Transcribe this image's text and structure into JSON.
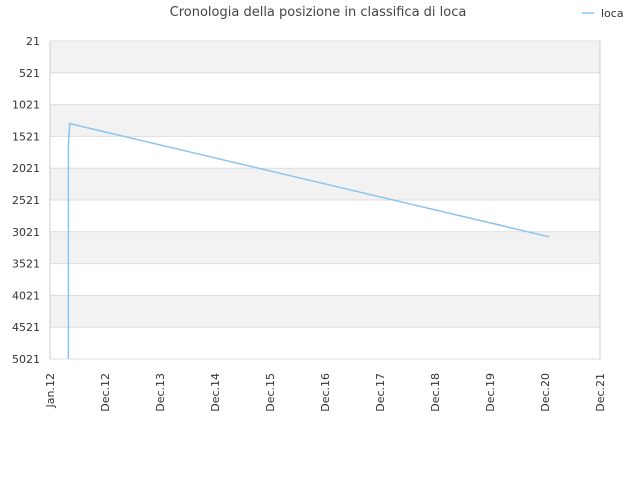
{
  "chart_data": {
    "type": "line",
    "title": "Cronologia della posizione in classifica di loca",
    "xlabel": "",
    "ylabel": "",
    "x_ticks": [
      "Jan.12",
      "Dec.12",
      "Dec.13",
      "Dec.14",
      "Dec.15",
      "Dec.16",
      "Dec.17",
      "Dec.18",
      "Dec.19",
      "Dec.20",
      "Dec.21"
    ],
    "y_ticks": [
      "21",
      "521",
      "1021",
      "1521",
      "2021",
      "2521",
      "3021",
      "3521",
      "4021",
      "4521",
      "5021"
    ],
    "ylim": [
      21,
      5021
    ],
    "y_inverted": true,
    "grid": "horizontal alternating bands",
    "legend_position": "top-right",
    "series": [
      {
        "name": "loca",
        "color": "#8cc4f0",
        "points": [
          {
            "x": "2012-05-01",
            "y": 5021
          },
          {
            "x": "2012-05-01",
            "y": 1650
          },
          {
            "x": "2012-05-10",
            "y": 1320
          },
          {
            "x": "2020-12-31",
            "y": 3100
          }
        ]
      }
    ]
  },
  "colors": {
    "band": "#f2f2f2",
    "gridline": "#dddddd",
    "axis": "#cccccc"
  }
}
